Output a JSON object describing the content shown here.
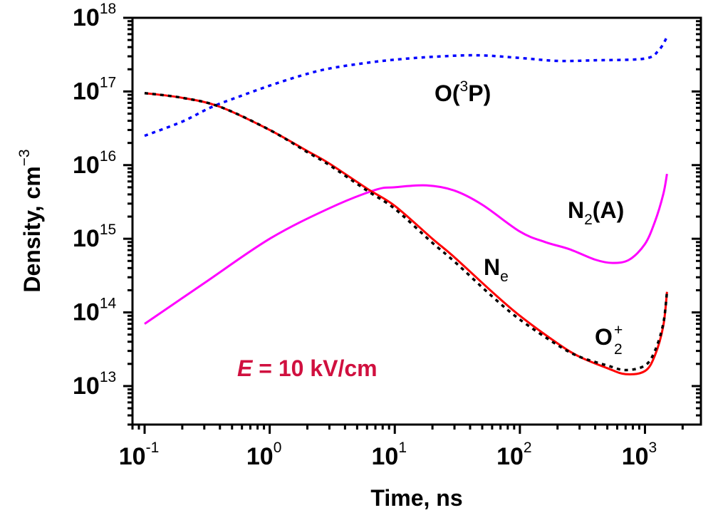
{
  "chart_data": {
    "type": "line",
    "title": "",
    "xlabel": "Time, ns",
    "ylabel": "Density, cm",
    "ylabel_superscript": "−3",
    "x_scale": "log",
    "y_scale": "log",
    "xlim": [
      0.08,
      2800
    ],
    "ylim": [
      3000000000000.0,
      1e+18
    ],
    "grid": false,
    "x_ticks": [
      {
        "value": 0.1,
        "base": "10",
        "exp": "-1"
      },
      {
        "value": 1,
        "base": "10",
        "exp": "0"
      },
      {
        "value": 10,
        "base": "10",
        "exp": "1"
      },
      {
        "value": 100,
        "base": "10",
        "exp": "2"
      },
      {
        "value": 1000,
        "base": "10",
        "exp": "3"
      }
    ],
    "y_ticks": [
      {
        "value": 10000000000000.0,
        "base": "10",
        "exp": "13"
      },
      {
        "value": 100000000000000.0,
        "base": "10",
        "exp": "14"
      },
      {
        "value": 1000000000000000.0,
        "base": "10",
        "exp": "15"
      },
      {
        "value": 1e+16,
        "base": "10",
        "exp": "16"
      },
      {
        "value": 1e+17,
        "base": "10",
        "exp": "17"
      },
      {
        "value": 1e+18,
        "base": "10",
        "exp": "18"
      }
    ],
    "series": [
      {
        "name": "O(3P)",
        "color": "#0000ff",
        "style": "dotted",
        "x": [
          0.1,
          0.2,
          0.34,
          0.6,
          1,
          1.8,
          3,
          6,
          10,
          20,
          45,
          100,
          200,
          400,
          1000,
          1300,
          1500
        ],
        "y": [
          2.5e+16,
          3.9e+16,
          6.1e+16,
          8.8e+16,
          1.2e+17,
          1.65e+17,
          2.05e+17,
          2.45e+17,
          2.7e+17,
          2.95e+17,
          3.1e+17,
          2.85e+17,
          2.6e+17,
          2.65e+17,
          2.8e+17,
          3.7e+17,
          5.5e+17
        ]
      },
      {
        "name": "Ne",
        "color": "#ff0000",
        "style": "solid",
        "x": [
          0.1,
          0.2,
          0.4,
          1,
          2,
          3,
          6,
          10,
          20,
          30,
          60,
          100,
          200,
          300,
          500,
          700,
          1000,
          1200,
          1400,
          1500
        ],
        "y": [
          9.5e+16,
          8.2e+16,
          6.2e+16,
          3e+16,
          1.55e+16,
          1.05e+16,
          4800000000000000.0,
          2800000000000000.0,
          1000000000000000.0,
          560000000000000.0,
          190000000000000.0,
          90000000000000.0,
          38000000000000.0,
          25000000000000.0,
          17500000000000.0,
          14500000000000.0,
          16000000000000.0,
          26000000000000.0,
          65000000000000.0,
          190000000000000.0
        ]
      },
      {
        "name": "O2+",
        "color": "#000000",
        "style": "dotted",
        "x": [
          0.1,
          0.2,
          0.4,
          1,
          2,
          3,
          6,
          10,
          20,
          30,
          60,
          100,
          200,
          300,
          500,
          700,
          1000,
          1200,
          1400,
          1500
        ],
        "y": [
          9.5e+16,
          8.2e+16,
          6.2e+16,
          3e+16,
          1.5e+16,
          1e+16,
          4500000000000000.0,
          2550000000000000.0,
          880000000000000.0,
          490000000000000.0,
          165000000000000.0,
          80000000000000.0,
          36000000000000.0,
          25000000000000.0,
          19000000000000.0,
          16500000000000.0,
          19000000000000.0,
          30000000000000.0,
          70000000000000.0,
          190000000000000.0
        ]
      },
      {
        "name": "N2(A)",
        "color": "#ff00ff",
        "style": "solid",
        "x": [
          0.1,
          0.3,
          1,
          3,
          7,
          10,
          18,
          30,
          50,
          100,
          160,
          250,
          400,
          550,
          750,
          1000,
          1200,
          1400,
          1500
        ],
        "y": [
          70000000000000.0,
          250000000000000.0,
          1000000000000000.0,
          2600000000000000.0,
          4600000000000000.0,
          5000000000000000.0,
          5300000000000000.0,
          4500000000000000.0,
          2900000000000000.0,
          1250000000000000.0,
          900000000000000.0,
          720000000000000.0,
          520000000000000.0,
          470000000000000.0,
          520000000000000.0,
          850000000000000.0,
          1700000000000000.0,
          4000000000000000.0,
          7600000000000000.0
        ]
      }
    ],
    "annotations": [
      {
        "id": "o3p",
        "base": "O(",
        "sup": "3",
        "tail": "P)"
      },
      {
        "id": "n2a",
        "base": "N",
        "sub": "2",
        "tail": "(A)"
      },
      {
        "id": "ne",
        "base": "N",
        "sub": "e"
      },
      {
        "id": "o2p",
        "base": "O",
        "sup": "+",
        "sub": "2"
      }
    ],
    "field_label": {
      "italic": "E",
      "text": " = 10 kV/cm",
      "color": "#d0103f"
    }
  }
}
